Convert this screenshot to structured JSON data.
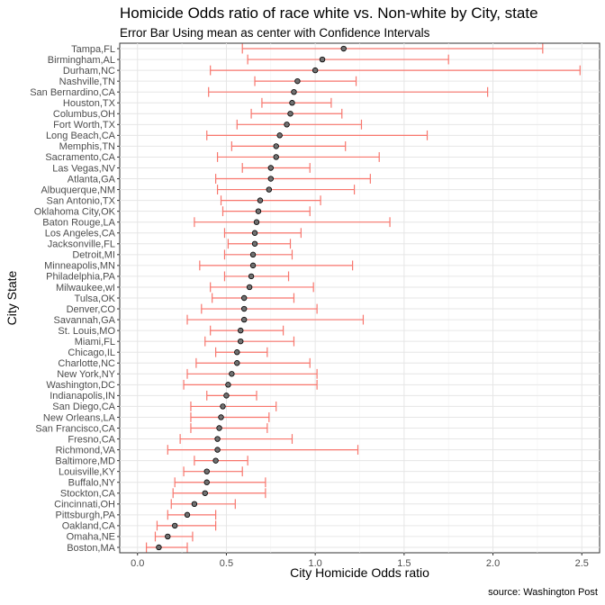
{
  "chart_data": {
    "type": "errorbar",
    "title": "Homicide Odds ratio of race white vs. Non-white by City, state",
    "subtitle": "Error Bar Using mean as center with Confidence Intervals",
    "xlabel": "City Homicide Odds ratio",
    "ylabel": "City State",
    "caption": "source: Washington Post",
    "xlim": [
      -0.1,
      2.6
    ],
    "x_ticks": [
      0.0,
      0.5,
      1.0,
      1.5,
      2.0,
      2.5
    ],
    "x_tick_labels": [
      "0.0",
      "0.5",
      "1.0",
      "1.5",
      "2.0",
      "2.5"
    ],
    "grid": true,
    "point_color": "#707070",
    "errorbar_color": "#f8766d",
    "categories": [
      "Tampa,FL",
      "Birmingham,AL",
      "Durham,NC",
      "Nashville,TN",
      "San Bernardino,CA",
      "Houston,TX",
      "Columbus,OH",
      "Fort Worth,TX",
      "Long Beach,CA",
      "Memphis,TN",
      "Sacramento,CA",
      "Las Vegas,NV",
      "Atlanta,GA",
      "Albuquerque,NM",
      "San Antonio,TX",
      "Oklahoma City,OK",
      "Baton Rouge,LA",
      "Los Angeles,CA",
      "Jacksonville,FL",
      "Detroit,MI",
      "Minneapolis,MN",
      "Philadelphia,PA",
      "Milwaukee,wI",
      "Tulsa,OK",
      "Denver,CO",
      "Savannah,GA",
      "St. Louis,MO",
      "Miami,FL",
      "Chicago,IL",
      "Charlotte,NC",
      "New York,NY",
      "Washington,DC",
      "Indianapolis,IN",
      "San Diego,CA",
      "New Orleans,LA",
      "San Francisco,CA",
      "Fresno,CA",
      "Richmond,VA",
      "Baltimore,MD",
      "Louisville,KY",
      "Buffalo,NY",
      "Stockton,CA",
      "Cincinnati,OH",
      "Pittsburgh,PA",
      "Oakland,CA",
      "Omaha,NE",
      "Boston,MA"
    ],
    "mean": [
      1.16,
      1.04,
      1.0,
      0.9,
      0.88,
      0.87,
      0.86,
      0.84,
      0.8,
      0.78,
      0.78,
      0.75,
      0.75,
      0.74,
      0.69,
      0.68,
      0.67,
      0.66,
      0.66,
      0.65,
      0.65,
      0.64,
      0.63,
      0.6,
      0.6,
      0.6,
      0.58,
      0.58,
      0.56,
      0.56,
      0.53,
      0.51,
      0.5,
      0.48,
      0.47,
      0.46,
      0.45,
      0.45,
      0.44,
      0.39,
      0.39,
      0.38,
      0.32,
      0.28,
      0.21,
      0.17,
      0.12
    ],
    "lower": [
      0.59,
      0.62,
      0.41,
      0.66,
      0.4,
      0.7,
      0.64,
      0.56,
      0.39,
      0.53,
      0.45,
      0.59,
      0.44,
      0.45,
      0.47,
      0.48,
      0.32,
      0.49,
      0.51,
      0.49,
      0.35,
      0.49,
      0.41,
      0.42,
      0.36,
      0.28,
      0.41,
      0.38,
      0.44,
      0.33,
      0.28,
      0.26,
      0.39,
      0.3,
      0.3,
      0.3,
      0.24,
      0.17,
      0.32,
      0.26,
      0.21,
      0.2,
      0.19,
      0.17,
      0.11,
      0.1,
      0.05
    ],
    "upper": [
      2.28,
      1.75,
      2.49,
      1.23,
      1.97,
      1.09,
      1.15,
      1.26,
      1.63,
      1.17,
      1.36,
      0.97,
      1.31,
      1.22,
      1.03,
      0.97,
      1.42,
      0.92,
      0.86,
      0.87,
      1.21,
      0.85,
      0.99,
      0.88,
      1.01,
      1.27,
      0.82,
      0.88,
      0.73,
      0.97,
      1.01,
      1.01,
      0.67,
      0.78,
      0.74,
      0.73,
      0.87,
      1.24,
      0.62,
      0.59,
      0.72,
      0.72,
      0.55,
      0.44,
      0.44,
      0.31,
      0.28
    ]
  }
}
